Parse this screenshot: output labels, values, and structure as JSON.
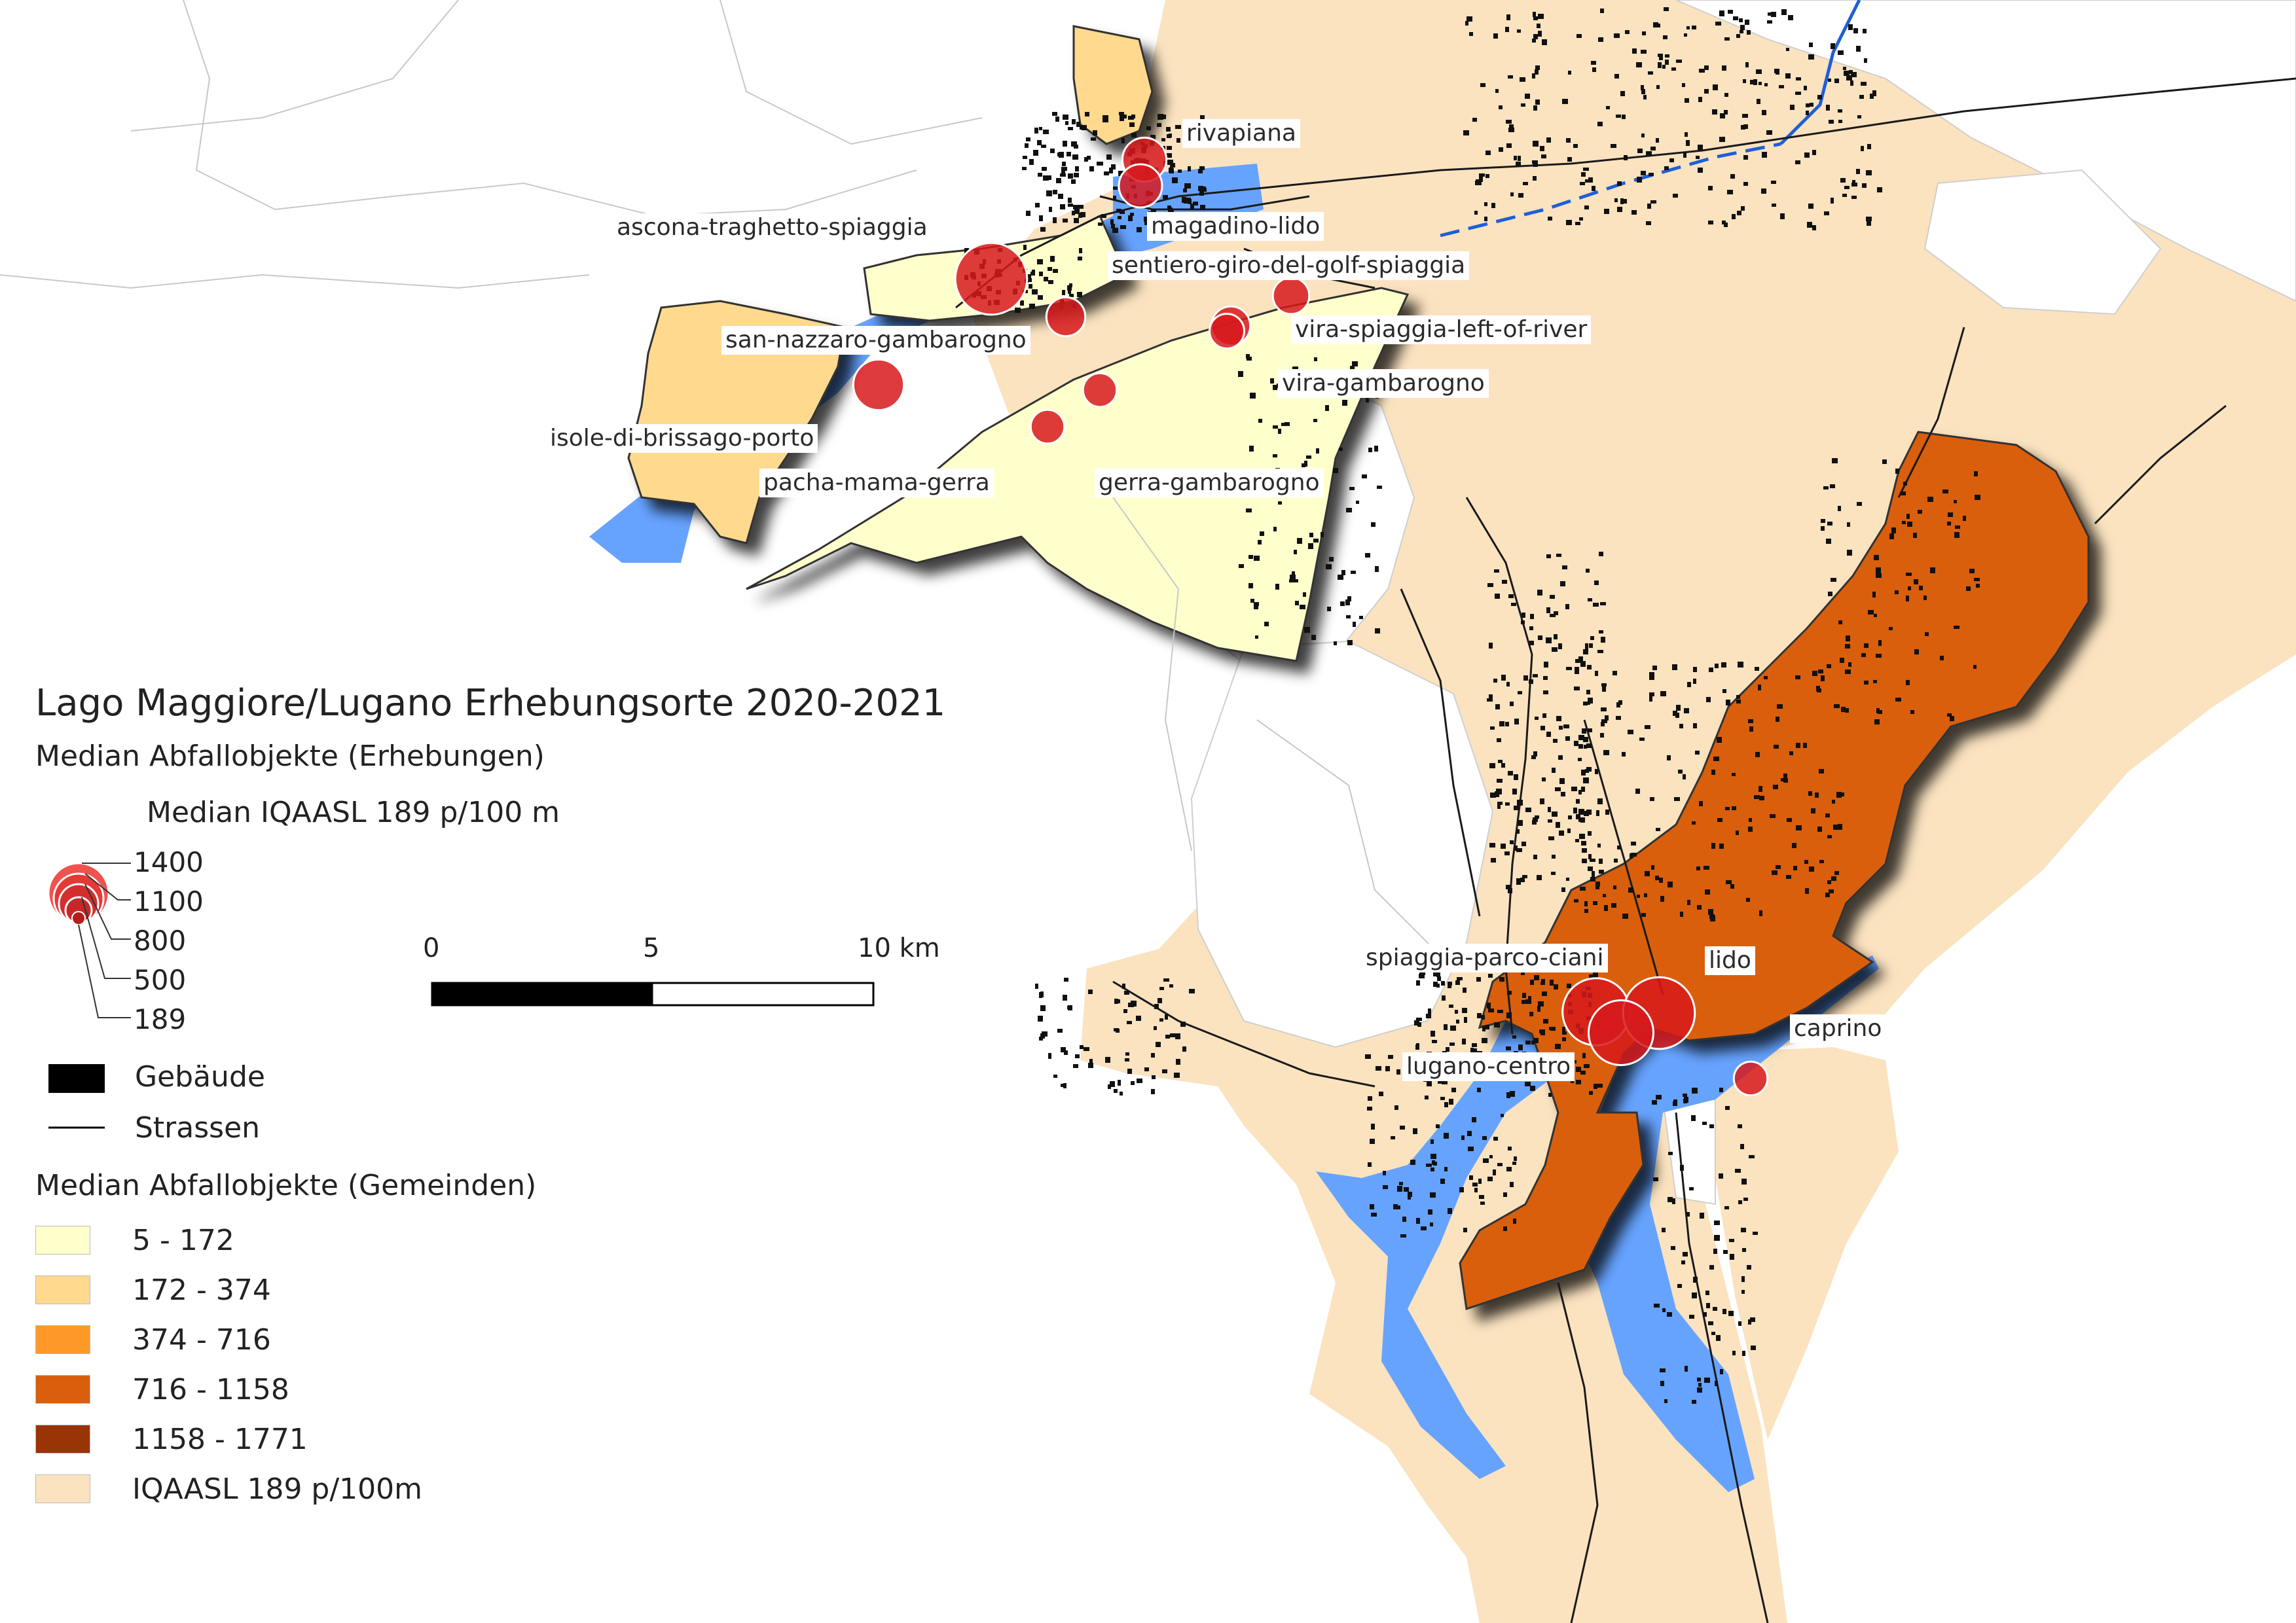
{
  "title": "Lago Maggiore/Lugano Erhebungsorte 2020-2021",
  "legend": {
    "survey_heading": "Median Abfallobjekte (Erhebungen)",
    "size_heading": "Median IQAASL 189 p/100 m",
    "size_values": [
      "1400",
      "1100",
      "800",
      "500",
      "189"
    ],
    "buildings_label": "Gebäude",
    "roads_label": "Strassen",
    "municipality_heading": "Median Abfallobjekte (Gemeinden)",
    "classes": [
      {
        "label": "5 - 172",
        "color": "#ffffcc"
      },
      {
        "label": "172 - 374",
        "color": "#fed98e"
      },
      {
        "label": "374 - 716",
        "color": "#fe9929"
      },
      {
        "label": "716 - 1158",
        "color": "#d95f0e"
      },
      {
        "label": "1158 - 1771",
        "color": "#993404"
      },
      {
        "label": "IQAASL 189 p/100m",
        "color": "#fbe3c0"
      }
    ]
  },
  "scale_bar": {
    "labels": [
      "0",
      "5",
      "10 km"
    ]
  },
  "locations": [
    {
      "name": "rivapiana",
      "median": 420
    },
    {
      "name": "magadino-lido",
      "median": 400
    },
    {
      "name": "ascona-traghetto-spiaggia",
      "median": 1400
    },
    {
      "name": "sentiero-giro-del-golf-spiaggia",
      "median": 250
    },
    {
      "name": "san-nazzaro-gambarogno",
      "median": 300
    },
    {
      "name": "vira-spiaggia-left-of-river",
      "median": 300
    },
    {
      "name": "vira-gambarogno",
      "median": 220
    },
    {
      "name": "isole-di-brissago-porto",
      "median": 600
    },
    {
      "name": "pacha-mama-gerra",
      "median": 200
    },
    {
      "name": "gerra-gambarogno",
      "median": 200
    },
    {
      "name": "spiaggia-parco-ciani",
      "median": 1200
    },
    {
      "name": "lido",
      "median": 1400
    },
    {
      "name": "lugano-centro",
      "median": 1100
    },
    {
      "name": "caprino",
      "median": 200
    }
  ],
  "colors": {
    "lake": "#66a3ff",
    "river": "#1f5fd6",
    "survey_point": "#d7191c"
  }
}
